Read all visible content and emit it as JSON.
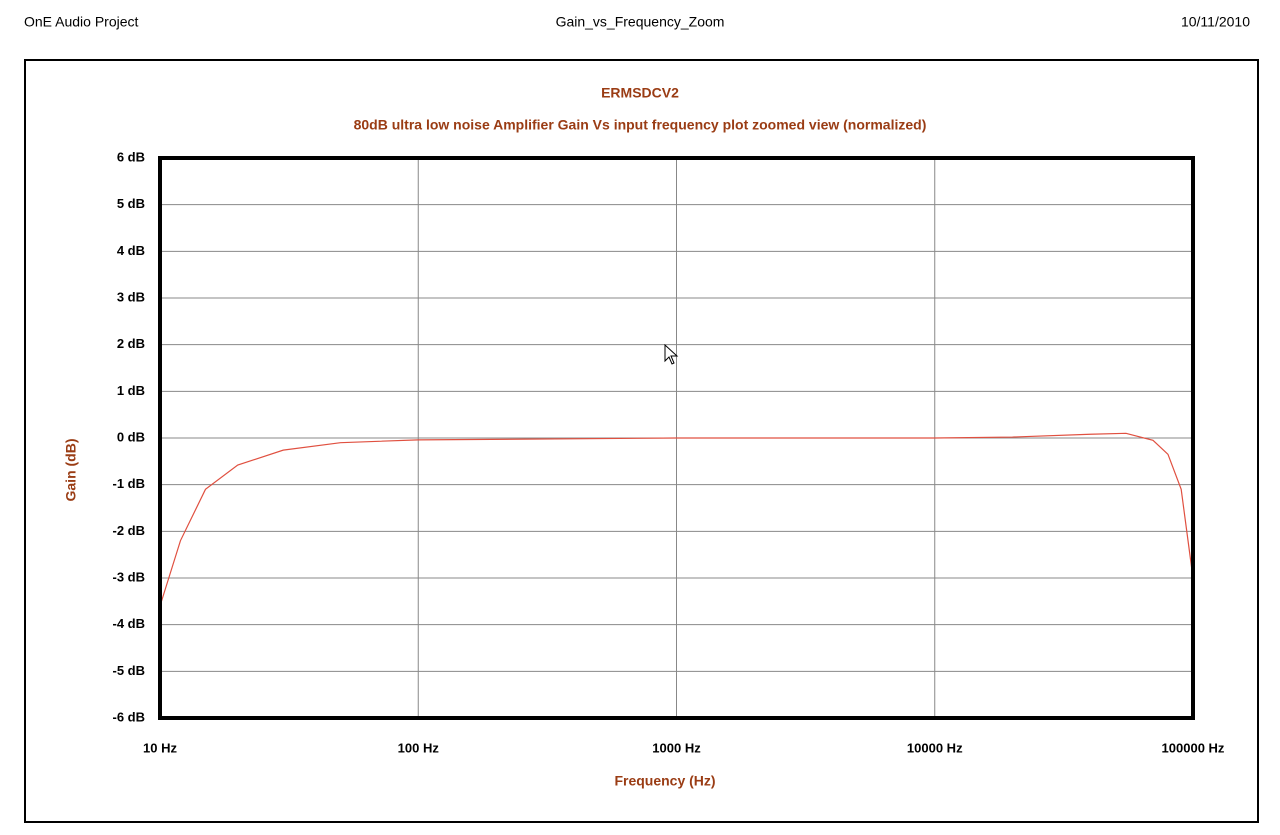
{
  "header": {
    "left": "OnE Audio Project",
    "center": "Gain_vs_Frequency_Zoom",
    "right": "10/11/2010"
  },
  "chart_data": {
    "type": "line",
    "title": "ERMSDCV2",
    "subtitle": "80dB ultra low noise Amplifier Gain Vs input frequency plot zoomed view (normalized)",
    "xlabel": "Frequency (Hz)",
    "ylabel": "Gain (dB)",
    "x": [
      10,
      12,
      15,
      20,
      30,
      50,
      100,
      1000,
      10000,
      20000,
      40000,
      55000,
      70000,
      80000,
      90000,
      100000
    ],
    "values": [
      -3.6,
      -2.2,
      -1.1,
      -0.58,
      -0.26,
      -0.1,
      -0.04,
      0,
      0,
      0.02,
      0.08,
      0.1,
      -0.05,
      -0.35,
      -1.1,
      -3.0
    ],
    "color": "#e05040",
    "xscale": "log",
    "grid": true,
    "xlim": [
      10,
      100000
    ],
    "xticks": [
      {
        "value": 10,
        "label": "10 Hz"
      },
      {
        "value": 100,
        "label": "100 Hz"
      },
      {
        "value": 1000,
        "label": "1000 Hz"
      },
      {
        "value": 10000,
        "label": "10000 Hz"
      },
      {
        "value": 100000,
        "label": "100000 Hz"
      }
    ],
    "ylim": [
      -6,
      6
    ],
    "yticks": [
      {
        "value": -6,
        "label": "-6 dB"
      },
      {
        "value": -5,
        "label": "-5 dB"
      },
      {
        "value": -4,
        "label": "-4 dB"
      },
      {
        "value": -3,
        "label": "-3 dB"
      },
      {
        "value": -2,
        "label": "-2 dB"
      },
      {
        "value": -1,
        "label": "-1 dB"
      },
      {
        "value": 0,
        "label": "0 dB"
      },
      {
        "value": 1,
        "label": "1 dB"
      },
      {
        "value": 2,
        "label": "2 dB"
      },
      {
        "value": 3,
        "label": "3 dB"
      },
      {
        "value": 4,
        "label": "4 dB"
      },
      {
        "value": 5,
        "label": "5 dB"
      },
      {
        "value": 6,
        "label": "6 dB"
      }
    ]
  }
}
